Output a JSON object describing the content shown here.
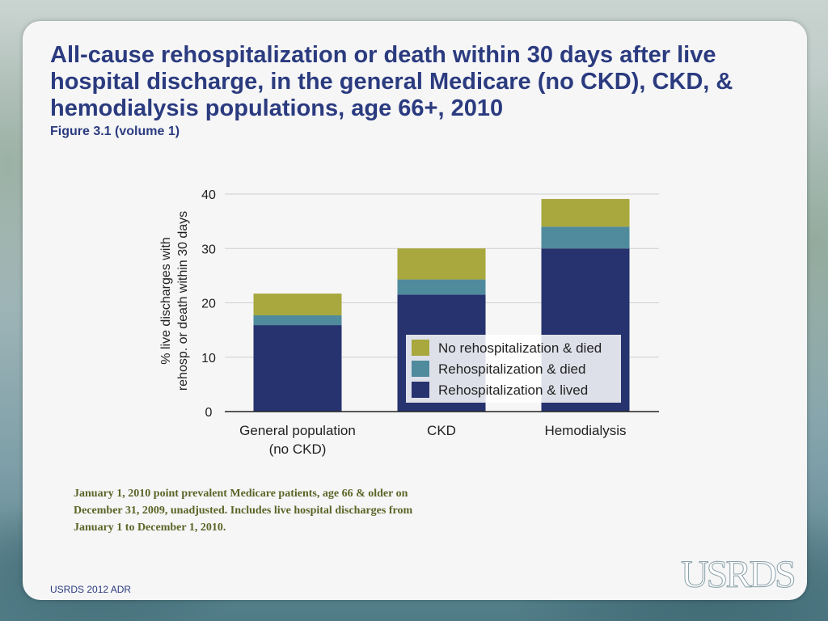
{
  "title": "All-cause rehospitalization or death within 30 days after live hospital discharge, in the general Medicare (no CKD), CKD, & hemodialysis populations, age 66+, 2010",
  "subtitle": "Figure 3.1 (volume 1)",
  "footnote": "January 1, 2010 point prevalent Medicare patients, age 66 & older on December 31, 2009, unadjusted. Includes live hospital discharges from January 1 to December 1, 2010.",
  "source": "USRDS 2012 ADR",
  "logo_text": "USRDS",
  "colors": {
    "lived": "#27336e",
    "died": "#4f8b9d",
    "no_rehosp_died": "#a8a83e",
    "axis": "#222222",
    "grid": "#cfcfcf"
  },
  "chart_data": {
    "type": "bar",
    "stacked": true,
    "title": "",
    "xlabel": "",
    "ylabel_lines": [
      "% live discharges with",
      "rehosp. or death within 30 days"
    ],
    "ylim": [
      0,
      40
    ],
    "yticks": [
      0,
      10,
      20,
      30,
      40
    ],
    "categories": [
      {
        "lines": [
          "General population",
          "(no CKD)"
        ]
      },
      {
        "lines": [
          "CKD"
        ]
      },
      {
        "lines": [
          "Hemodialysis"
        ]
      }
    ],
    "series": [
      {
        "name": "Rehospitalization & lived",
        "color_key": "lived",
        "values": [
          15.9,
          21.5,
          30.0
        ]
      },
      {
        "name": "Rehospitalization & died",
        "color_key": "died",
        "values": [
          1.8,
          2.8,
          4.0
        ]
      },
      {
        "name": "No rehospitalization & died",
        "color_key": "no_rehosp_died",
        "values": [
          4.0,
          5.7,
          5.1
        ]
      }
    ],
    "legend_order": [
      2,
      1,
      0
    ],
    "legend_position": "inside-bottom-right"
  }
}
